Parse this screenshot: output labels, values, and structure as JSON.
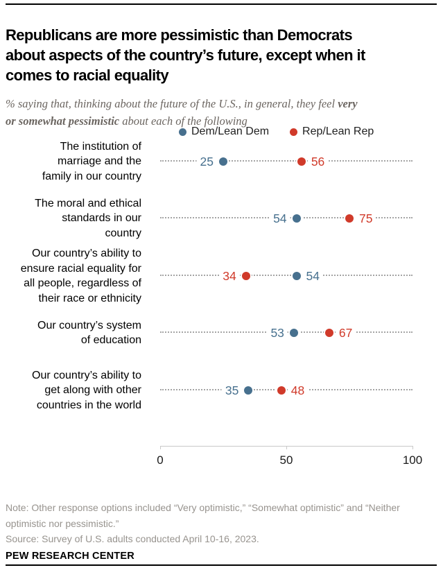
{
  "header": {
    "title": "Republicans are more pessimistic than Democrats\nabout aspects of the country’s future, except when it\ncomes to racial equality",
    "subtitle_prefix": "% saying that, thinking about the future of the U.S., in general, they feel ",
    "subtitle_bold": "very\nor somewhat pessimistic",
    "subtitle_suffix": " about each of the following"
  },
  "legend": [
    {
      "label": "Dem/Lean Dem",
      "color": "#47708e"
    },
    {
      "label": "Rep/Lean Rep",
      "color": "#d03a2a"
    }
  ],
  "chart_data": {
    "type": "scatter",
    "variant": "dot-plot",
    "categories": [
      "The institution of\nmarriage and the\nfamily in our country",
      "The moral and ethical\nstandards in our\ncountry",
      "Our country’s ability to\nensure racial equality for\nall people, regardless of\ntheir race or ethnicity",
      "Our country’s system\nof education",
      "Our country’s ability to\nget along with other\ncountries in the world"
    ],
    "series": [
      {
        "name": "Dem/Lean Dem",
        "color": "#47708e",
        "values": [
          25,
          54,
          54,
          53,
          35
        ]
      },
      {
        "name": "Rep/Lean Rep",
        "color": "#d03a2a",
        "values": [
          56,
          75,
          34,
          67,
          48
        ]
      }
    ],
    "xlim": [
      0,
      100
    ],
    "x_ticks": [
      0,
      50,
      100
    ],
    "x_tick_labels": [
      "0",
      "50",
      "100"
    ],
    "grid": "dotted-leader-lines",
    "legend_position": "top",
    "title": "",
    "xlabel": "",
    "ylabel": ""
  },
  "footer": {
    "note": "Note: Other response options included “Very optimistic,” “Somewhat optimistic” and “Neither\noptimistic nor pessimistic.”",
    "source": "Source: Survey of U.S. adults conducted April 10-16, 2023.",
    "brand": "PEW RESEARCH CENTER"
  }
}
